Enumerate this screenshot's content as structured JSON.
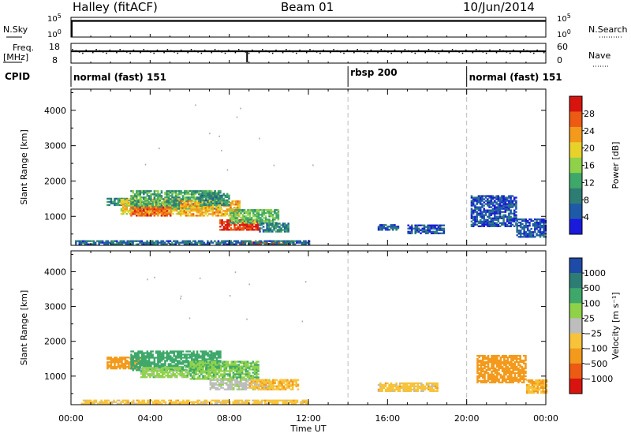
{
  "header": {
    "station": "Halley (fitACF)",
    "beam": "Beam 01",
    "date": "10/Jun/2014"
  },
  "strips": {
    "nsky": {
      "label": "N.Sky",
      "ticks": [
        "10^5",
        "10^0"
      ],
      "right_label": "N.Search",
      "right_ticks": [
        "10^5",
        "10^0"
      ],
      "level": 0.82
    },
    "freq": {
      "label_line1": "Freq.",
      "label_line2": "[MHz]",
      "ticks": [
        "18",
        "8"
      ],
      "right_label": "Nave",
      "right_ticks": [
        "60",
        "0"
      ],
      "level": 0.6
    },
    "cpid": {
      "label": "CPID",
      "segments": [
        {
          "start_hour": 0,
          "end_hour": 14,
          "text": "normal (fast) 151"
        },
        {
          "start_hour": 14,
          "end_hour": 20,
          "text": "rbsp 200"
        },
        {
          "start_hour": 20,
          "end_hour": 24,
          "text": "normal (fast) 151"
        }
      ]
    }
  },
  "colors": {
    "power": [
      "#1a1adc",
      "#1e5aa8",
      "#2e7d74",
      "#3ea86a",
      "#8fd24a",
      "#e8d22a",
      "#f39a1c",
      "#ec5a14",
      "#d8140f"
    ],
    "velocity": [
      "#d8140f",
      "#ec5a14",
      "#f39a1c",
      "#f7c33a",
      "#bdbdbd",
      "#8fd24a",
      "#3ea86a",
      "#2e7d74",
      "#1e4aa8"
    ]
  },
  "chart_data": [
    {
      "type": "heatmap",
      "title": "",
      "xlabel": "Time UT",
      "ylabel": "Slant Range [km]",
      "xlim": [
        0,
        24
      ],
      "ylim": [
        180,
        4600
      ],
      "x_ticks": [
        "00:00",
        "04:00",
        "08:00",
        "12:00",
        "16:00",
        "20:00",
        "00:00"
      ],
      "y_ticks": [
        1000,
        2000,
        3000,
        4000
      ],
      "colorbar": {
        "label": "Power [dB]",
        "ticks": [
          4,
          8,
          12,
          16,
          20,
          24,
          28
        ],
        "range": [
          0,
          32
        ]
      },
      "regions": [
        {
          "t0": 1.8,
          "t1": 3.0,
          "r0": 1300,
          "r1": 1500,
          "value": 10
        },
        {
          "t0": 2.5,
          "t1": 5.5,
          "r0": 1050,
          "r1": 1500,
          "value": 20
        },
        {
          "t0": 3.0,
          "t1": 7.5,
          "r0": 1200,
          "r1": 1700,
          "value": 12
        },
        {
          "t0": 3.0,
          "t1": 5.0,
          "r0": 1000,
          "r1": 1250,
          "value": 26
        },
        {
          "t0": 5.5,
          "t1": 8.5,
          "r0": 1000,
          "r1": 1450,
          "value": 22
        },
        {
          "t0": 6.5,
          "t1": 8.0,
          "r0": 1300,
          "r1": 1650,
          "value": 10
        },
        {
          "t0": 7.5,
          "t1": 9.5,
          "r0": 600,
          "r1": 900,
          "value": 29
        },
        {
          "t0": 8.0,
          "t1": 10.5,
          "r0": 800,
          "r1": 1200,
          "value": 14
        },
        {
          "t0": 9.5,
          "t1": 11.0,
          "r0": 550,
          "r1": 800,
          "value": 9
        },
        {
          "t0": 8.5,
          "t1": 11.2,
          "r0": 200,
          "r1": 290,
          "value": 29
        },
        {
          "t0": 0.2,
          "t1": 12.0,
          "r0": 190,
          "r1": 320,
          "value": 7
        },
        {
          "t0": 15.5,
          "t1": 16.5,
          "r0": 600,
          "r1": 750,
          "value": 6
        },
        {
          "t0": 17.0,
          "t1": 18.8,
          "r0": 500,
          "r1": 750,
          "value": 5
        },
        {
          "t0": 20.2,
          "t1": 22.5,
          "r0": 700,
          "r1": 1600,
          "value": 5
        },
        {
          "t0": 22.5,
          "t1": 24.0,
          "r0": 400,
          "r1": 900,
          "value": 5
        }
      ]
    },
    {
      "type": "heatmap",
      "title": "",
      "xlabel": "Time UT",
      "ylabel": "Slant Range [km]",
      "xlim": [
        0,
        24
      ],
      "ylim": [
        180,
        4600
      ],
      "x_ticks": [
        "00:00",
        "04:00",
        "08:00",
        "12:00",
        "16:00",
        "20:00",
        "00:00"
      ],
      "y_ticks": [
        1000,
        2000,
        3000,
        4000
      ],
      "colorbar": {
        "label": "Velocity [m s⁻¹]",
        "ticks": [
          "1000",
          "500",
          "100",
          "25",
          "−25",
          "−100",
          "−500",
          "−1000"
        ]
      },
      "regions": [
        {
          "t0": 1.8,
          "t1": 3.5,
          "r0": 1200,
          "r1": 1550,
          "value": -200
        },
        {
          "t0": 3.0,
          "t1": 7.5,
          "r0": 1150,
          "r1": 1700,
          "value": 200
        },
        {
          "t0": 3.5,
          "t1": 6.0,
          "r0": 950,
          "r1": 1250,
          "value": 60
        },
        {
          "t0": 6.0,
          "t1": 9.5,
          "r0": 900,
          "r1": 1400,
          "value": 80
        },
        {
          "t0": 7.0,
          "t1": 10.0,
          "r0": 600,
          "r1": 900,
          "value": 10
        },
        {
          "t0": 9.0,
          "t1": 11.5,
          "r0": 600,
          "r1": 900,
          "value": -80
        },
        {
          "t0": 0.5,
          "t1": 12.0,
          "r0": 190,
          "r1": 320,
          "value": -60
        },
        {
          "t0": 15.5,
          "t1": 18.5,
          "r0": 550,
          "r1": 800,
          "value": -60
        },
        {
          "t0": 20.5,
          "t1": 23.0,
          "r0": 800,
          "r1": 1600,
          "value": -300
        },
        {
          "t0": 23.0,
          "t1": 24.0,
          "r0": 500,
          "r1": 900,
          "value": -100
        }
      ]
    }
  ]
}
